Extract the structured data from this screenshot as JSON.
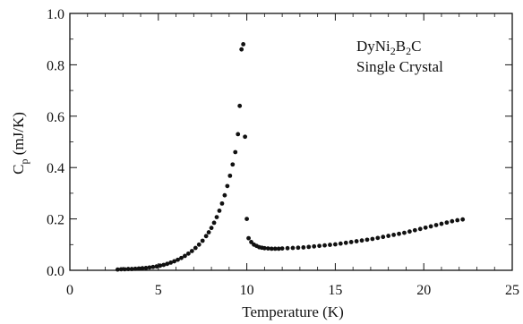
{
  "chart_data": {
    "type": "scatter",
    "xlabel": "Temperature (K)",
    "ylabel": {
      "main": "C",
      "sub": "p",
      "rest": " (mJ/K)"
    },
    "xlim": [
      0,
      25
    ],
    "ylim": [
      0,
      1.0
    ],
    "xticks": [
      0,
      5,
      10,
      15,
      20,
      25
    ],
    "xtick_labels": [
      "0",
      "5",
      "10",
      "15",
      "20",
      "25"
    ],
    "yticks": [
      0,
      0.2,
      0.4,
      0.6,
      0.8,
      1.0
    ],
    "ytick_labels": [
      "0.0",
      "0.2",
      "0.4",
      "0.6",
      "0.8",
      "1.0"
    ],
    "annotation": {
      "line1": {
        "p1": "DyNi",
        "s1": "2",
        "p2": "B",
        "s2": "2",
        "p3": "C"
      },
      "line2": "Single Crystal"
    },
    "grid": false,
    "marker_color": "#111111",
    "series": [
      {
        "x": [
          2.7,
          2.9,
          3.1,
          3.3,
          3.5,
          3.7,
          3.9,
          4.1,
          4.3,
          4.5,
          4.7,
          4.9,
          5.1,
          5.3,
          5.5,
          5.7,
          5.9,
          6.1,
          6.3,
          6.5,
          6.7,
          6.9,
          7.1,
          7.3,
          7.5,
          7.7,
          7.85,
          8.0,
          8.15,
          8.3,
          8.45,
          8.6,
          8.75,
          8.9,
          9.05,
          9.2,
          9.35,
          9.5,
          9.6,
          9.7,
          9.8,
          9.9,
          10.0,
          10.1,
          10.25,
          10.4,
          10.55,
          10.7,
          10.85,
          11.0,
          11.2,
          11.4,
          11.6,
          11.8,
          12.0,
          12.3,
          12.6,
          12.9,
          13.2,
          13.5,
          13.8,
          14.1,
          14.4,
          14.7,
          15.0,
          15.3,
          15.6,
          15.9,
          16.2,
          16.5,
          16.8,
          17.1,
          17.4,
          17.7,
          18.0,
          18.3,
          18.6,
          18.9,
          19.2,
          19.5,
          19.8,
          20.1,
          20.4,
          20.7,
          21.0,
          21.3,
          21.6,
          21.9,
          22.2
        ],
        "y": [
          0.003,
          0.004,
          0.004,
          0.005,
          0.005,
          0.006,
          0.007,
          0.008,
          0.009,
          0.011,
          0.013,
          0.015,
          0.018,
          0.021,
          0.025,
          0.03,
          0.035,
          0.041,
          0.048,
          0.056,
          0.065,
          0.075,
          0.087,
          0.1,
          0.115,
          0.133,
          0.148,
          0.165,
          0.185,
          0.207,
          0.232,
          0.26,
          0.292,
          0.328,
          0.368,
          0.412,
          0.46,
          0.53,
          0.64,
          0.86,
          0.88,
          0.52,
          0.2,
          0.125,
          0.11,
          0.1,
          0.095,
          0.09,
          0.088,
          0.086,
          0.085,
          0.084,
          0.084,
          0.084,
          0.085,
          0.086,
          0.087,
          0.088,
          0.089,
          0.091,
          0.093,
          0.095,
          0.097,
          0.099,
          0.101,
          0.104,
          0.107,
          0.11,
          0.113,
          0.116,
          0.119,
          0.122,
          0.126,
          0.13,
          0.134,
          0.138,
          0.142,
          0.146,
          0.151,
          0.156,
          0.161,
          0.166,
          0.171,
          0.176,
          0.181,
          0.186,
          0.191,
          0.195,
          0.198
        ]
      }
    ]
  }
}
